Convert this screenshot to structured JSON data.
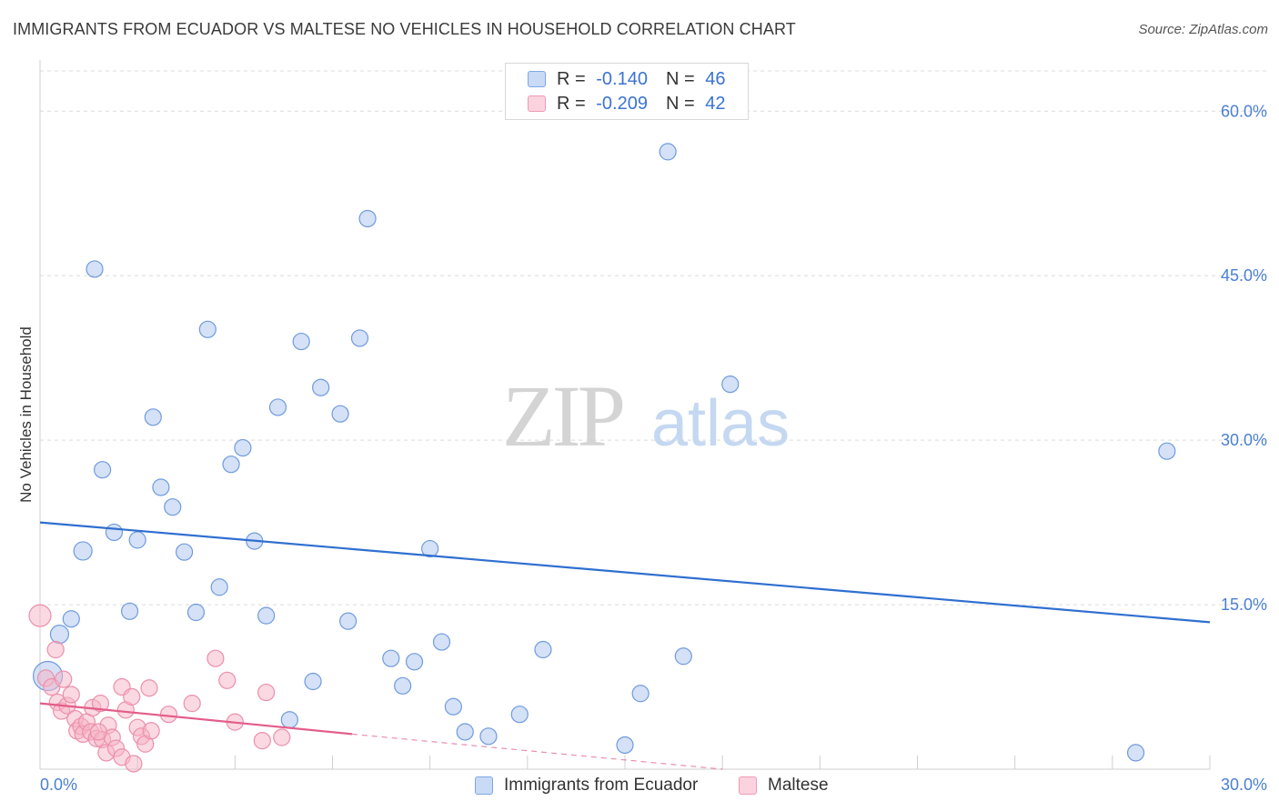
{
  "header": {
    "title": "IMMIGRANTS FROM ECUADOR VS MALTESE NO VEHICLES IN HOUSEHOLD CORRELATION CHART",
    "source": "Source: ZipAtlas.com"
  },
  "watermark": {
    "zip": "ZIP",
    "atlas": "atlas"
  },
  "legend": {
    "rows": [
      {
        "r_label": "R = ",
        "r_value": "-0.140",
        "n_label": "N = ",
        "n_value": "46",
        "color": "#a9c4ee"
      },
      {
        "r_label": "R = ",
        "r_value": "-0.209",
        "n_label": "N = ",
        "n_value": "42",
        "color": "#f5b3c6"
      }
    ]
  },
  "bottom_legend": {
    "items": [
      {
        "label": "Immigrants from Ecuador",
        "color": "#a9c4ee"
      },
      {
        "label": "Maltese",
        "color": "#f5b3c6"
      }
    ]
  },
  "chart_data": {
    "type": "scatter",
    "title": "IMMIGRANTS FROM ECUADOR VS MALTESE NO VEHICLES IN HOUSEHOLD CORRELATION CHART",
    "xlabel": "",
    "ylabel": "No Vehicles in Household",
    "xlim": [
      0,
      30
    ],
    "ylim": [
      0,
      64
    ],
    "x_tick_labels": [
      "0.0%",
      "30.0%"
    ],
    "y_ticks": [
      15,
      30,
      45,
      60
    ],
    "y_tick_labels": [
      "15.0%",
      "30.0%",
      "45.0%",
      "60.0%"
    ],
    "grid": true,
    "series": [
      {
        "name": "Immigrants from Ecuador",
        "color": "#a9c4ee",
        "stroke": "#6f9bde",
        "trend_color": "#2f6fd0",
        "trend": {
          "x": [
            0,
            30
          ],
          "y": [
            22.5,
            13.4
          ]
        },
        "points": [
          [
            0.2,
            8.5,
            16
          ],
          [
            0.5,
            12.3,
            10
          ],
          [
            0.8,
            13.7,
            9
          ],
          [
            1.1,
            19.9,
            10
          ],
          [
            1.4,
            45.6,
            9
          ],
          [
            1.6,
            27.3,
            9
          ],
          [
            1.9,
            21.6,
            9
          ],
          [
            2.3,
            14.4,
            9
          ],
          [
            2.5,
            20.9,
            9
          ],
          [
            2.9,
            32.1,
            9
          ],
          [
            3.1,
            25.7,
            9
          ],
          [
            3.4,
            23.9,
            9
          ],
          [
            3.7,
            19.8,
            9
          ],
          [
            4.0,
            14.3,
            9
          ],
          [
            4.3,
            40.1,
            9
          ],
          [
            4.6,
            16.6,
            9
          ],
          [
            4.9,
            27.8,
            9
          ],
          [
            5.2,
            29.3,
            9
          ],
          [
            5.5,
            20.8,
            9
          ],
          [
            5.8,
            14.0,
            9
          ],
          [
            6.1,
            33.0,
            9
          ],
          [
            6.4,
            4.5,
            9
          ],
          [
            6.7,
            39.0,
            9
          ],
          [
            7.0,
            8.0,
            9
          ],
          [
            7.2,
            34.8,
            9
          ],
          [
            7.7,
            32.4,
            9
          ],
          [
            7.9,
            13.5,
            9
          ],
          [
            8.2,
            39.3,
            9
          ],
          [
            8.4,
            50.2,
            9
          ],
          [
            9.0,
            10.1,
            9
          ],
          [
            9.3,
            7.6,
            9
          ],
          [
            9.6,
            9.8,
            9
          ],
          [
            10.0,
            20.1,
            9
          ],
          [
            10.3,
            11.6,
            9
          ],
          [
            10.6,
            5.7,
            9
          ],
          [
            10.9,
            3.4,
            9
          ],
          [
            11.5,
            3.0,
            9
          ],
          [
            12.3,
            5.0,
            9
          ],
          [
            12.9,
            10.9,
            9
          ],
          [
            15.0,
            2.2,
            9
          ],
          [
            15.4,
            6.9,
            9
          ],
          [
            16.1,
            56.3,
            9
          ],
          [
            16.5,
            10.3,
            9
          ],
          [
            17.7,
            35.1,
            9
          ],
          [
            28.1,
            1.5,
            9
          ],
          [
            28.9,
            29.0,
            9
          ]
        ]
      },
      {
        "name": "Maltese",
        "color": "#f5b3c6",
        "stroke": "#ec8fab",
        "trend_color": "#e35d8a",
        "trend": {
          "x": [
            0,
            8.0
          ],
          "y": [
            6.0,
            3.2
          ]
        },
        "trend_extension": {
          "x": [
            8.0,
            17.5
          ],
          "y": [
            3.2,
            0.0
          ]
        },
        "points": [
          [
            0.0,
            14.0,
            12
          ],
          [
            0.15,
            8.3,
            9
          ],
          [
            0.3,
            7.5,
            9
          ],
          [
            0.4,
            10.9,
            9
          ],
          [
            0.45,
            6.1,
            9
          ],
          [
            0.55,
            5.3,
            9
          ],
          [
            0.6,
            8.2,
            9
          ],
          [
            0.7,
            5.8,
            9
          ],
          [
            0.8,
            6.8,
            9
          ],
          [
            0.9,
            4.6,
            9
          ],
          [
            0.95,
            3.5,
            9
          ],
          [
            1.05,
            3.9,
            9
          ],
          [
            1.1,
            3.2,
            9
          ],
          [
            1.2,
            4.3,
            9
          ],
          [
            1.3,
            3.4,
            9
          ],
          [
            1.35,
            5.6,
            9
          ],
          [
            1.45,
            2.8,
            9
          ],
          [
            1.55,
            6.0,
            9
          ],
          [
            1.6,
            2.7,
            9
          ],
          [
            1.7,
            1.5,
            9
          ],
          [
            1.75,
            4.0,
            9
          ],
          [
            1.85,
            2.9,
            9
          ],
          [
            1.95,
            1.9,
            9
          ],
          [
            2.1,
            7.5,
            9
          ],
          [
            2.2,
            5.4,
            9
          ],
          [
            2.35,
            6.6,
            9
          ],
          [
            2.5,
            3.8,
            9
          ],
          [
            2.6,
            3.0,
            9
          ],
          [
            2.7,
            2.3,
            9
          ],
          [
            2.8,
            7.4,
            9
          ],
          [
            2.85,
            3.5,
            9
          ],
          [
            3.3,
            5.0,
            9
          ],
          [
            3.9,
            6.0,
            9
          ],
          [
            4.5,
            10.1,
            9
          ],
          [
            4.8,
            8.1,
            9
          ],
          [
            5.0,
            4.3,
            9
          ],
          [
            5.7,
            2.6,
            9
          ],
          [
            5.8,
            7.0,
            9
          ],
          [
            6.2,
            2.9,
            9
          ],
          [
            2.1,
            1.1,
            9
          ],
          [
            2.4,
            0.5,
            9
          ],
          [
            1.5,
            3.4,
            9
          ]
        ]
      }
    ]
  }
}
